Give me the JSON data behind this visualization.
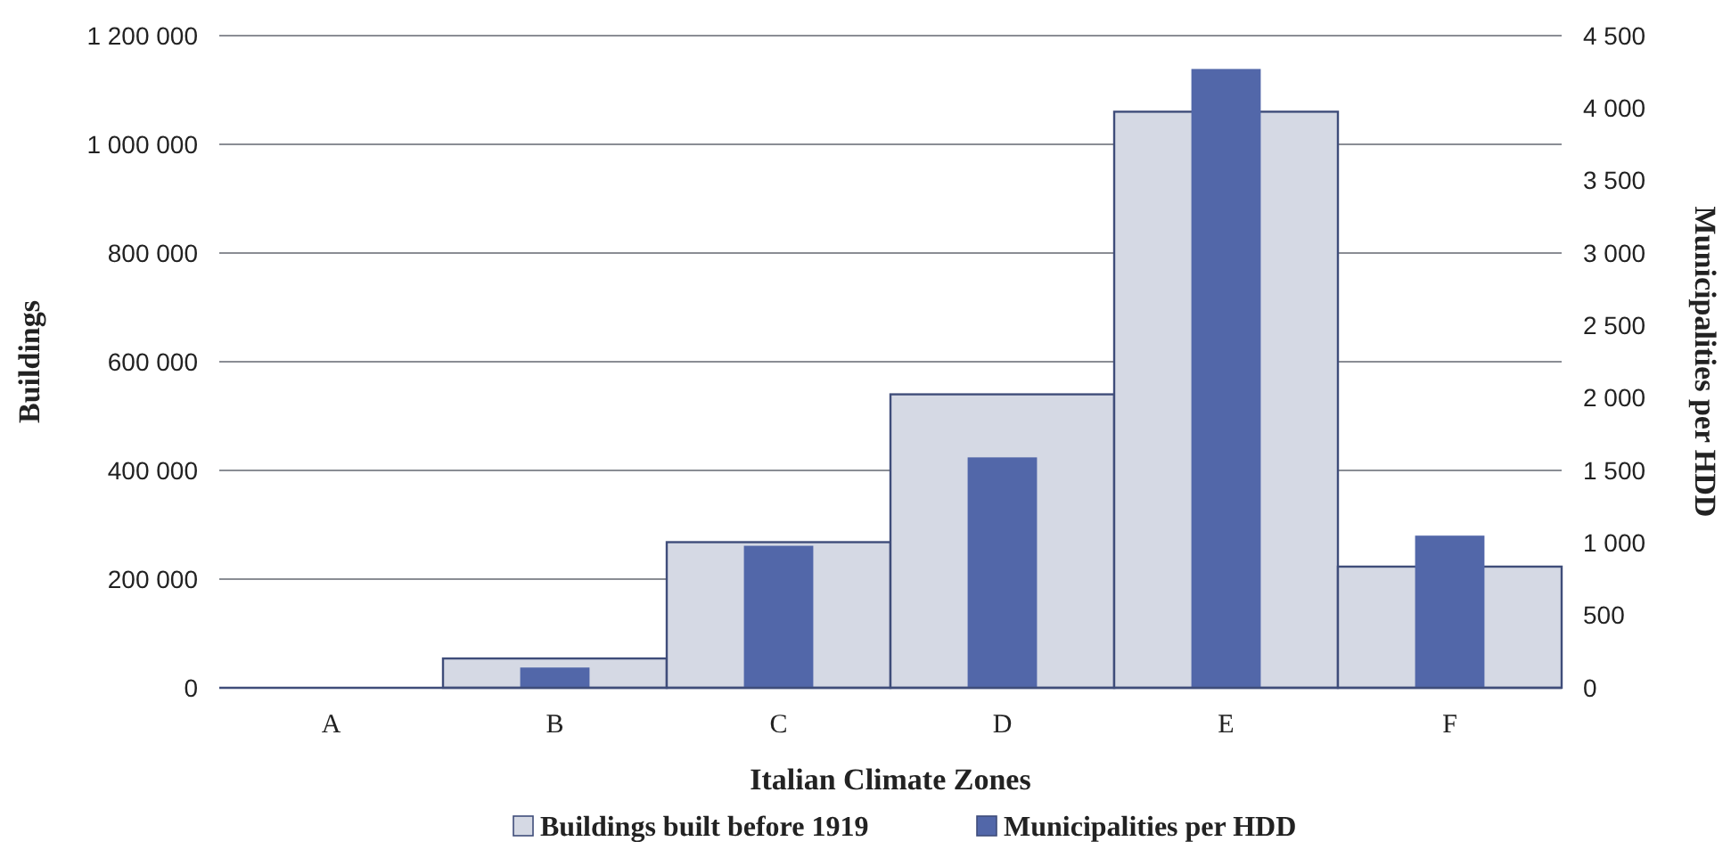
{
  "chart_data": {
    "type": "bar",
    "xlabel": "Italian Climate Zones",
    "ylabel": "Buildings",
    "y2label": "Municipalities per HDD",
    "categories": [
      "A",
      "B",
      "C",
      "D",
      "E",
      "F"
    ],
    "series": [
      {
        "name": "Buildings built before 1919",
        "color": "#d5d9e4",
        "values": [
          null,
          54000,
          268000,
          540000,
          1060000,
          223000
        ]
      },
      {
        "name": "Municipalities per HDD",
        "color": "#5267a9",
        "axis": "y2",
        "values": [
          0,
          140,
          980,
          1590,
          4270,
          1050
        ]
      }
    ],
    "ylim": [
      0,
      1200000
    ],
    "yticks": [
      {
        "value": 0,
        "label": "0"
      },
      {
        "value": 200000,
        "label": "200 000"
      },
      {
        "value": 400000,
        "label": "400 000"
      },
      {
        "value": 600000,
        "label": "600 000"
      },
      {
        "value": 800000,
        "label": "800 000"
      },
      {
        "value": 1000000,
        "label": "1 000 000"
      },
      {
        "value": 1200000,
        "label": "1 200 000"
      }
    ],
    "y2lim": [
      0,
      4500
    ],
    "y2ticks": [
      {
        "value": 0,
        "label": "0"
      },
      {
        "value": 500,
        "label": "500"
      },
      {
        "value": 1000,
        "label": "1 000"
      },
      {
        "value": 1500,
        "label": "1 500"
      },
      {
        "value": 2000,
        "label": "2 000"
      },
      {
        "value": 2500,
        "label": "2 500"
      },
      {
        "value": 3000,
        "label": "3 000"
      },
      {
        "value": 3500,
        "label": "3 500"
      },
      {
        "value": 4000,
        "label": "4 000"
      },
      {
        "value": 4500,
        "label": "4 500"
      }
    ],
    "grid": "y",
    "legend": "bottom"
  }
}
